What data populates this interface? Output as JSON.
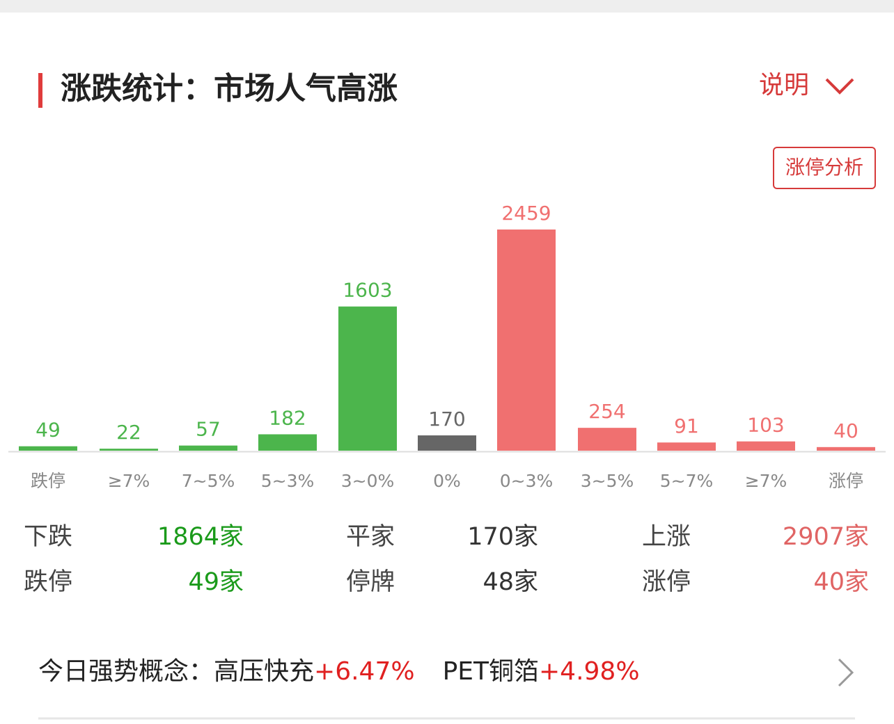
{
  "header": {
    "title": "涨跌统计：市场人气高涨",
    "help": "说明",
    "button": "涨停分析"
  },
  "chart_data": {
    "type": "bar",
    "categories": [
      "跌停",
      "≥7%",
      "7~5%",
      "5~3%",
      "3~0%",
      "0%",
      "0~3%",
      "3~5%",
      "5~7%",
      "≥7%",
      "涨停"
    ],
    "values": [
      49,
      22,
      57,
      182,
      1603,
      170,
      2459,
      254,
      91,
      103,
      40
    ],
    "colors": [
      "#4cb54c",
      "#4cb54c",
      "#4cb54c",
      "#4cb54c",
      "#4cb54c",
      "#666666",
      "#f07070",
      "#f07070",
      "#f07070",
      "#f07070",
      "#f07070"
    ]
  },
  "stats": {
    "rows": [
      [
        {
          "label": "下跌",
          "value": "1864家",
          "color": "#1a9a1a"
        },
        {
          "label": "平家",
          "value": "170家",
          "color": "#333333"
        },
        {
          "label": "上涨",
          "value": "2907家",
          "color": "#e06464"
        }
      ],
      [
        {
          "label": "跌停",
          "value": "49家",
          "color": "#1a9a1a"
        },
        {
          "label": "停牌",
          "value": "48家",
          "color": "#333333"
        },
        {
          "label": "涨停",
          "value": "40家",
          "color": "#e06464"
        }
      ]
    ]
  },
  "concepts": {
    "label": "今日强势概念：",
    "items": [
      {
        "name": "高压快充",
        "change": "+6.47%"
      },
      {
        "name": "PET铜箔",
        "change": "+4.98%"
      }
    ]
  }
}
